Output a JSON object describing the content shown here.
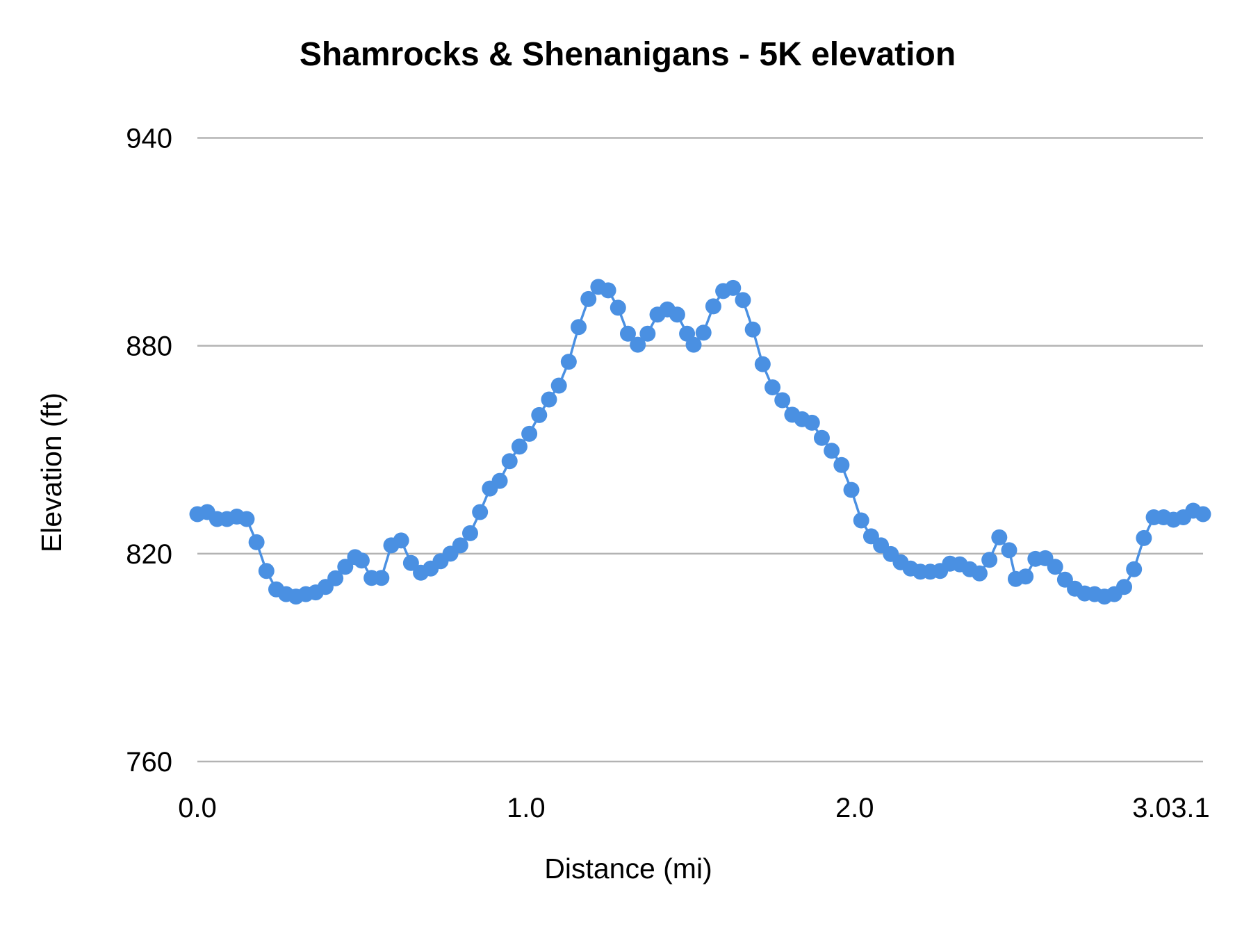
{
  "chart_data": {
    "type": "line",
    "title": "Shamrocks & Shenanigans - 5K elevation",
    "xlabel": "Distance (mi)",
    "ylabel": "Elevation (ft)",
    "xlim": [
      0,
      3.06
    ],
    "ylim": [
      760,
      940
    ],
    "xticks": [
      "0.0",
      "1.0",
      "2.0",
      "3.0",
      "3.1"
    ],
    "xtick_values": [
      0,
      1,
      2,
      3,
      3.1
    ],
    "yticks": [
      "760",
      "820",
      "880",
      "940"
    ],
    "ytick_values": [
      760,
      820,
      880,
      940
    ],
    "grid": "horizontal",
    "legend": "none",
    "series": [
      {
        "color": "#4a90e2",
        "markers": true,
        "x": [
          0.0,
          0.03,
          0.06,
          0.09,
          0.12,
          0.15,
          0.18,
          0.21,
          0.24,
          0.27,
          0.3,
          0.33,
          0.36,
          0.39,
          0.42,
          0.45,
          0.48,
          0.5,
          0.53,
          0.56,
          0.59,
          0.62,
          0.65,
          0.68,
          0.71,
          0.74,
          0.77,
          0.8,
          0.83,
          0.86,
          0.89,
          0.92,
          0.95,
          0.98,
          1.01,
          1.04,
          1.07,
          1.1,
          1.13,
          1.16,
          1.19,
          1.22,
          1.25,
          1.28,
          1.31,
          1.34,
          1.37,
          1.4,
          1.43,
          1.46,
          1.49,
          1.51,
          1.54,
          1.57,
          1.6,
          1.63,
          1.66,
          1.69,
          1.72,
          1.75,
          1.78,
          1.81,
          1.84,
          1.87,
          1.9,
          1.93,
          1.96,
          1.99,
          2.02,
          2.05,
          2.08,
          2.11,
          2.14,
          2.17,
          2.2,
          2.23,
          2.26,
          2.29,
          2.32,
          2.35,
          2.38,
          2.41,
          2.44,
          2.47,
          2.49,
          2.52,
          2.55,
          2.58,
          2.61,
          2.64,
          2.67,
          2.7,
          2.73,
          2.76,
          2.79,
          2.82,
          2.85,
          2.88,
          2.91,
          2.94,
          2.97,
          3.0,
          3.03,
          3.06
        ],
        "y": [
          831.4,
          832.0,
          830.0,
          830.0,
          830.7,
          830.0,
          823.3,
          815.0,
          809.7,
          808.3,
          807.6,
          808.3,
          808.8,
          810.4,
          812.9,
          816.2,
          819.0,
          818.0,
          813.0,
          813.0,
          822.4,
          823.8,
          817.3,
          814.5,
          815.7,
          817.8,
          820.0,
          822.4,
          825.9,
          832.0,
          838.8,
          841.0,
          846.7,
          850.9,
          854.6,
          860.0,
          864.5,
          868.5,
          875.4,
          885.4,
          893.5,
          897.0,
          896.0,
          891.0,
          883.5,
          880.3,
          883.5,
          889.0,
          890.5,
          889.0,
          883.5,
          880.3,
          883.8,
          891.4,
          895.8,
          896.7,
          893.2,
          884.7,
          874.7,
          868.0,
          864.3,
          860.1,
          858.8,
          857.8,
          853.4,
          849.7,
          845.6,
          838.4,
          829.6,
          825.0,
          822.4,
          819.9,
          817.5,
          815.7,
          814.8,
          814.8,
          815.0,
          817.1,
          816.9,
          815.5,
          814.3,
          818.2,
          824.7,
          821.0,
          812.7,
          813.4,
          818.5,
          818.7,
          816.2,
          812.5,
          809.9,
          808.5,
          808.3,
          807.6,
          808.3,
          810.4,
          815.5,
          824.5,
          830.5,
          830.5,
          829.8,
          830.5,
          832.4,
          831.4
        ]
      }
    ]
  }
}
